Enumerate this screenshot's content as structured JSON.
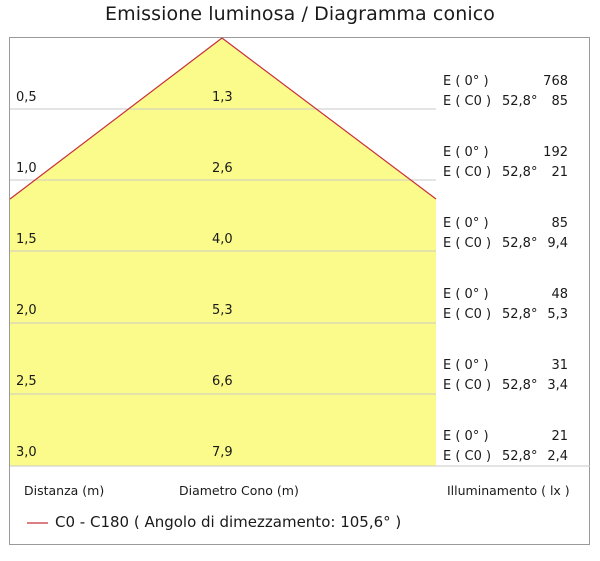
{
  "title": "Emissione luminosa  / Diagramma conico",
  "rows": [
    {
      "distance": "0,5",
      "diameter": "1,3",
      "e0_label": "E ( 0° )",
      "e0_value": "768",
      "ec0_label": "E ( C0 )",
      "ec0_angle": "52,8°",
      "ec0_value": "85"
    },
    {
      "distance": "1,0",
      "diameter": "2,6",
      "e0_label": "E ( 0° )",
      "e0_value": "192",
      "ec0_label": "E ( C0 )",
      "ec0_angle": "52,8°",
      "ec0_value": "21"
    },
    {
      "distance": "1,5",
      "diameter": "4,0",
      "e0_label": "E ( 0° )",
      "e0_value": "85",
      "ec0_label": "E ( C0 )",
      "ec0_angle": "52,8°",
      "ec0_value": "9,4"
    },
    {
      "distance": "2,0",
      "diameter": "5,3",
      "e0_label": "E ( 0° )",
      "e0_value": "48",
      "ec0_label": "E ( C0 )",
      "ec0_angle": "52,8°",
      "ec0_value": "5,3"
    },
    {
      "distance": "2,5",
      "diameter": "6,6",
      "e0_label": "E ( 0° )",
      "e0_value": "31",
      "ec0_label": "E ( C0 )",
      "ec0_angle": "52,8°",
      "ec0_value": "3,4"
    },
    {
      "distance": "3,0",
      "diameter": "7,9",
      "e0_label": "E ( 0° )",
      "e0_value": "21",
      "ec0_label": "E ( C0 )",
      "ec0_angle": "52,8°",
      "ec0_value": "2,4"
    }
  ],
  "footer": {
    "distance_header": "Distanza (m)",
    "diameter_header": "Diametro Cono (m)",
    "illuminance_header": "Illuminamento ( lx )"
  },
  "legend": {
    "text": "C0 - C180  ( Angolo di dimezzamento: 105,6° )",
    "color": "#c8303a"
  },
  "colors": {
    "cone_fill": "#fbfb8c",
    "cone_edge": "#c8303a",
    "grid_line": "#c9c9c9",
    "frame": "#9a9a9a"
  }
}
